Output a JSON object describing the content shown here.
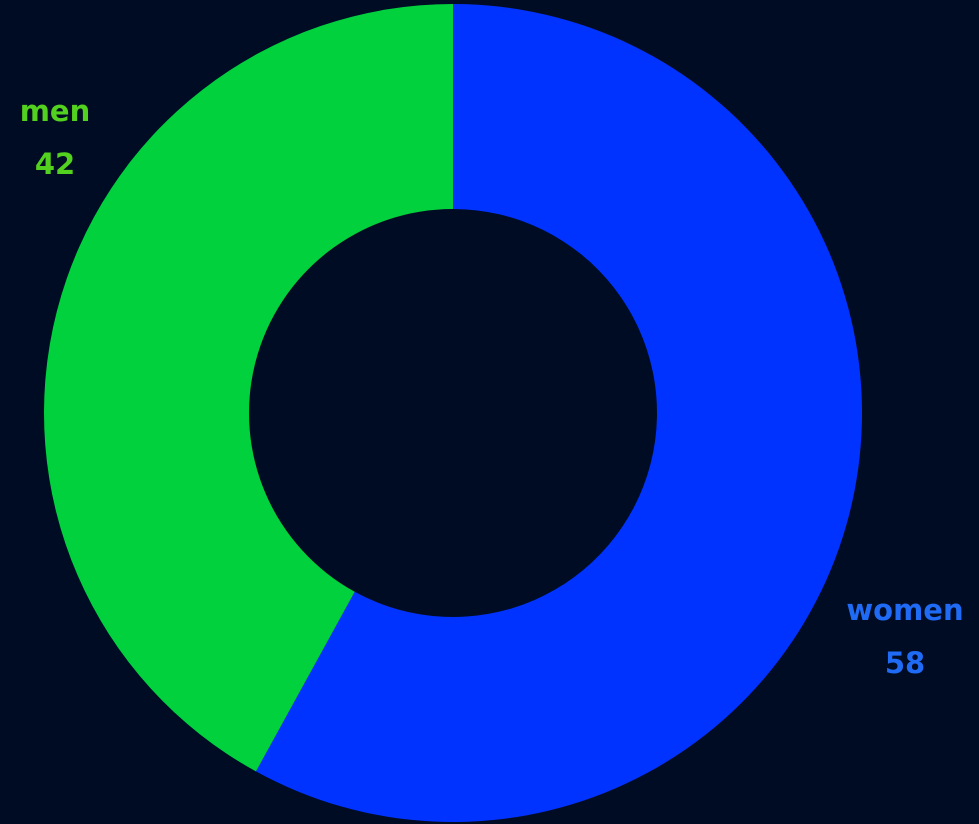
{
  "colors": {
    "background": "#000c24",
    "men": "#00d13d",
    "women": "#0033ff",
    "men_label": "#52d11f",
    "women_label": "#1f6bf5"
  },
  "chart_data": {
    "type": "pie",
    "variant": "donut",
    "start": "top",
    "direction": "clockwise",
    "slices": [
      {
        "label": "women",
        "value": 58,
        "value_text": "58",
        "color": "#0033ff",
        "label_color": "#1f6bf5"
      },
      {
        "label": "men",
        "value": 42,
        "value_text": "42",
        "color": "#00d13d",
        "label_color": "#52d11f"
      }
    ]
  }
}
